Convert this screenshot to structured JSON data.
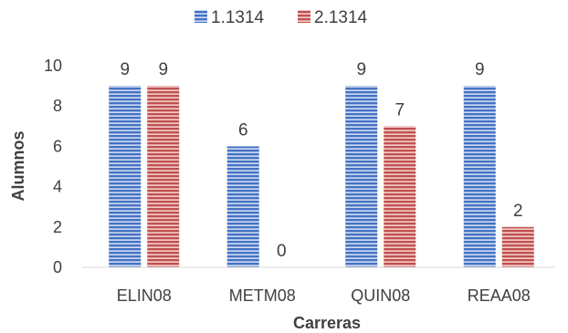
{
  "chart_data": {
    "type": "bar",
    "categories": [
      "ELIN08",
      "METM08",
      "QUIN08",
      "REAA08"
    ],
    "series": [
      {
        "name": "1.1314",
        "values": [
          9,
          6,
          9,
          9
        ]
      },
      {
        "name": "2.1314",
        "values": [
          9,
          0,
          7,
          2
        ]
      }
    ],
    "title": "",
    "xlabel": "Carreras",
    "ylabel": "Alumnos",
    "ylim": [
      0,
      10
    ],
    "yticks": [
      0,
      2,
      4,
      6,
      8,
      10
    ],
    "grid": false,
    "legend_position": "top",
    "data_labels": true,
    "colors": {
      "series_1": "#4472c4",
      "series_2": "#c0504d",
      "series_1_hatch": "#c9d7ef",
      "series_2_hatch": "#f0c8c6"
    }
  }
}
